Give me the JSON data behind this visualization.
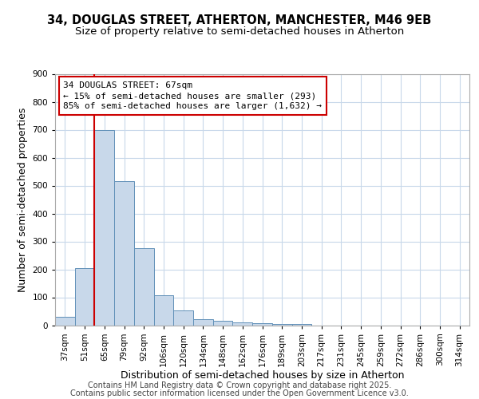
{
  "title_line1": "34, DOUGLAS STREET, ATHERTON, MANCHESTER, M46 9EB",
  "title_line2": "Size of property relative to semi-detached houses in Atherton",
  "xlabel": "Distribution of semi-detached houses by size in Atherton",
  "ylabel": "Number of semi-detached properties",
  "categories": [
    "37sqm",
    "51sqm",
    "65sqm",
    "79sqm",
    "92sqm",
    "106sqm",
    "120sqm",
    "134sqm",
    "148sqm",
    "162sqm",
    "176sqm",
    "189sqm",
    "203sqm",
    "217sqm",
    "231sqm",
    "245sqm",
    "259sqm",
    "272sqm",
    "286sqm",
    "300sqm",
    "314sqm"
  ],
  "values": [
    30,
    204,
    700,
    515,
    275,
    108,
    53,
    22,
    17,
    11,
    8,
    5,
    3,
    0,
    0,
    0,
    0,
    0,
    0,
    0,
    0
  ],
  "bar_color": "#c8d8ea",
  "bar_edge_color": "#6090b8",
  "red_line_x": 1.5,
  "red_line_color": "#cc0000",
  "annotation_text": "34 DOUGLAS STREET: 67sqm\n← 15% of semi-detached houses are smaller (293)\n85% of semi-detached houses are larger (1,632) →",
  "annotation_box_facecolor": "#ffffff",
  "annotation_box_edgecolor": "#cc0000",
  "ylim": [
    0,
    900
  ],
  "yticks": [
    0,
    100,
    200,
    300,
    400,
    500,
    600,
    700,
    800,
    900
  ],
  "background_color": "#ffffff",
  "plot_background": "#ffffff",
  "grid_color": "#c8d8ea",
  "footer_line1": "Contains HM Land Registry data © Crown copyright and database right 2025.",
  "footer_line2": "Contains public sector information licensed under the Open Government Licence v3.0.",
  "title_fontsize": 10.5,
  "subtitle_fontsize": 9.5,
  "axis_label_fontsize": 9,
  "tick_fontsize": 7.5,
  "footer_fontsize": 7,
  "annotation_fontsize": 8
}
